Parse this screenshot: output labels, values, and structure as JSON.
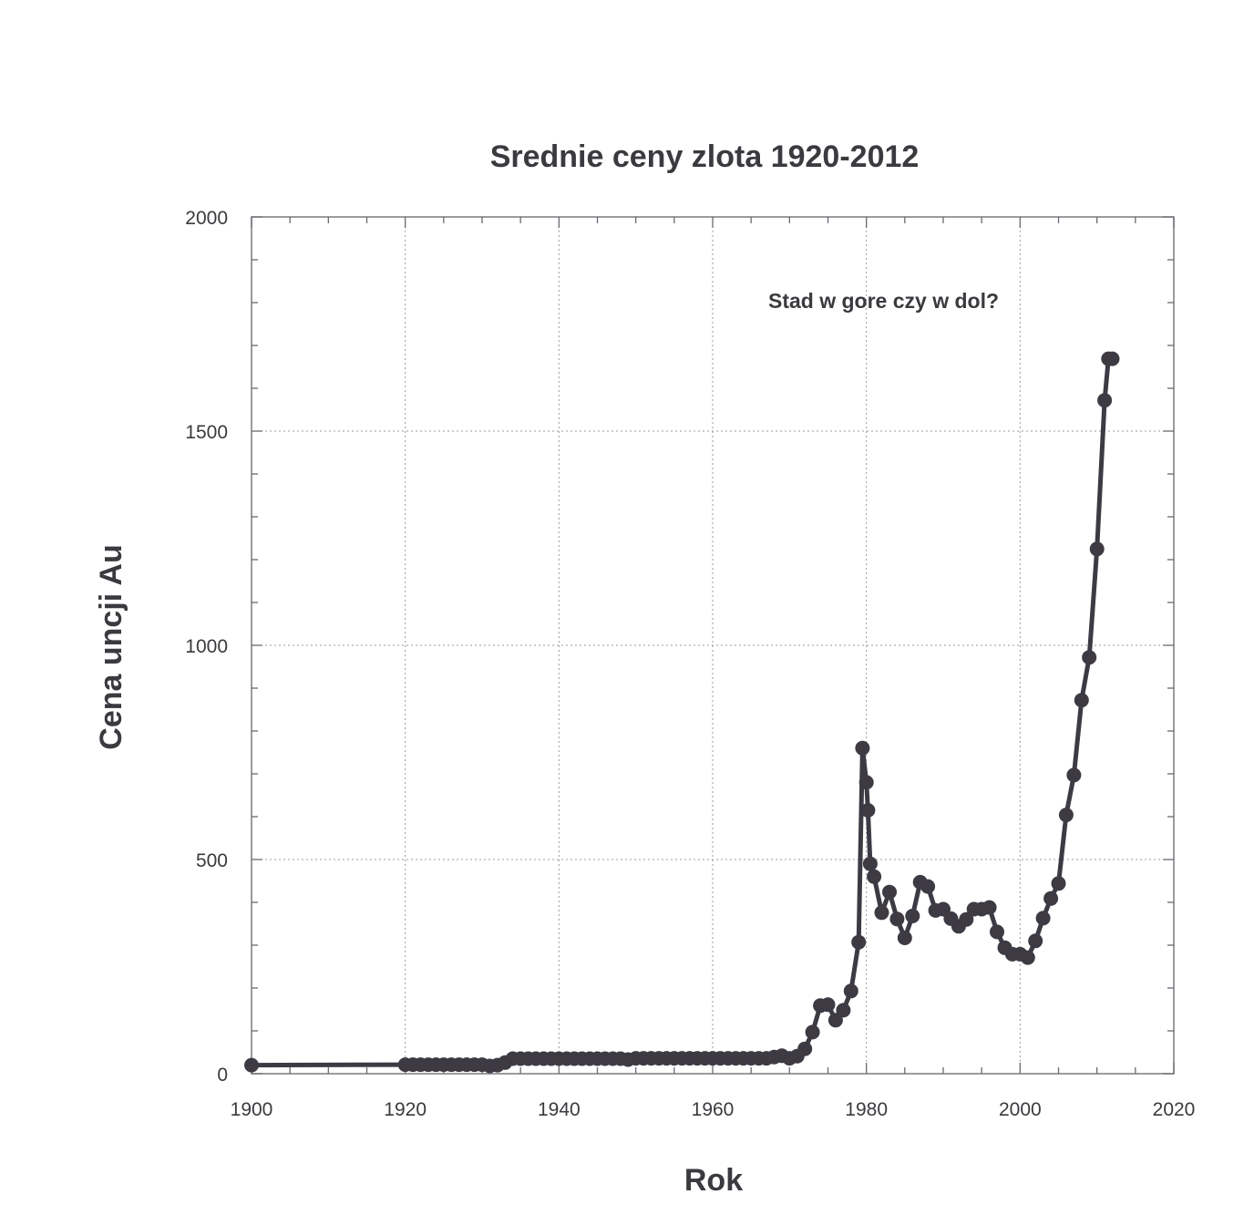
{
  "chart_data": {
    "type": "line",
    "title": "Srednie ceny zlota 1920-2012",
    "xlabel": "Rok",
    "ylabel": "Cena uncji Au",
    "annotation": "Stad w gore czy w dol?",
    "xlim": [
      1900,
      2020
    ],
    "ylim": [
      0,
      2000
    ],
    "xticks": [
      "1900",
      "1920",
      "1940",
      "1960",
      "1980",
      "2000",
      "2020"
    ],
    "yticks": [
      "0",
      "500",
      "1000",
      "1500",
      "2000"
    ],
    "grid": true,
    "legend": "none",
    "line_color": "#3d3a44",
    "marker_color": "#3d3a44",
    "series": [
      {
        "x": [
          1900,
          1920,
          1921,
          1922,
          1923,
          1924,
          1925,
          1926,
          1927,
          1928,
          1929,
          1930,
          1931,
          1932,
          1933,
          1934,
          1935,
          1936,
          1937,
          1938,
          1939,
          1940,
          1941,
          1942,
          1943,
          1944,
          1945,
          1946,
          1947,
          1948,
          1949,
          1950,
          1951,
          1952,
          1953,
          1954,
          1955,
          1956,
          1957,
          1958,
          1959,
          1960,
          1961,
          1962,
          1963,
          1964,
          1965,
          1966,
          1967,
          1968,
          1969,
          1970,
          1971,
          1972,
          1973,
          1974,
          1975,
          1976,
          1977,
          1978,
          1979,
          1979.5,
          1980,
          1980.2,
          1980.5,
          1981,
          1982,
          1983,
          1984,
          1985,
          1986,
          1987,
          1988,
          1989,
          1990,
          1991,
          1992,
          1993,
          1994,
          1995,
          1996,
          1997,
          1998,
          1999,
          2000,
          2001,
          2002,
          2003,
          2004,
          2005,
          2006,
          2007,
          2008,
          2009,
          2010,
          2011,
          2011.5,
          2012
        ],
        "y": [
          20,
          21,
          21,
          21,
          21,
          21,
          21,
          21,
          21,
          21,
          21,
          21,
          18,
          20,
          26,
          35,
          35,
          35,
          35,
          35,
          35,
          35,
          35,
          35,
          35,
          35,
          35,
          35,
          35,
          35,
          33,
          36,
          36,
          36,
          36,
          36,
          36,
          36,
          36,
          36,
          36,
          36,
          36,
          36,
          36,
          36,
          36,
          36,
          36,
          39,
          42,
          36,
          41,
          58,
          97,
          159,
          161,
          125,
          148,
          193,
          307,
          760,
          680,
          615,
          490,
          460,
          376,
          424,
          361,
          317,
          368,
          447,
          437,
          381,
          384,
          362,
          344,
          360,
          384,
          384,
          388,
          331,
          294,
          279,
          279,
          271,
          310,
          363,
          409,
          444,
          604,
          697,
          872,
          972,
          1225,
          1572,
          1669,
          1669
        ]
      }
    ]
  }
}
